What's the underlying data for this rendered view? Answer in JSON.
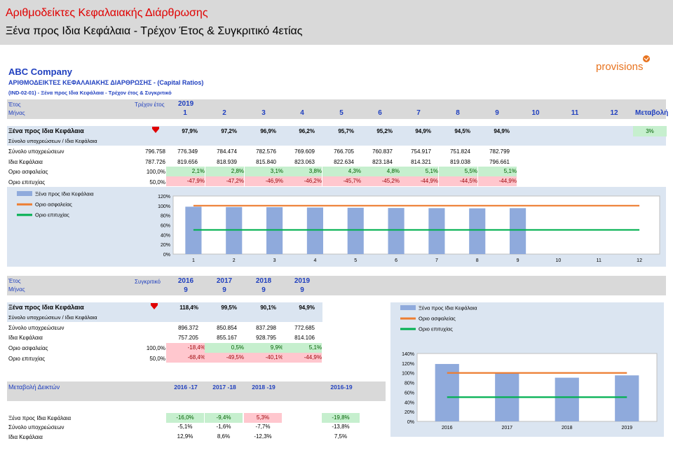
{
  "header": {
    "title": "Αριθμοδείκτες Κεφαλαιακής Διάρθρωσης",
    "subtitle": "Ξένα προς Ιδια Κεφάλαια - Τρέχον Έτος & Συγκριτικό 4ετίας"
  },
  "report": {
    "company": "ABC Company",
    "heading": "ΑΡΙΘΜΟΔΕΙΚΤΕΣ ΚΕΦΑΛΑΙΑΚΗΣ ΔΙΑΡΘΡΩΣΗΣ - (Capital Ratios)",
    "code": "(IND-02-01) - Ξένα προς Ιδια Κεφάλαια - Τρέχον έτος & Συγκριτικό",
    "logo_text": "provisions"
  },
  "colors": {
    "bar": "#8faadc",
    "insurance": "#ed7d31",
    "success": "#00b050",
    "blue_text": "#1f3fbf"
  },
  "current": {
    "year_label": "Έτος",
    "month_label": "Μήνας",
    "current_label": "Τρέχον έτος",
    "year": "2019",
    "months": [
      "1",
      "2",
      "3",
      "4",
      "5",
      "6",
      "7",
      "8",
      "9",
      "10",
      "11",
      "12"
    ],
    "change_label": "Μεταβολή",
    "ratio_label": "Ξένα προς Ιδια Κεφάλαια",
    "ratio": [
      "97,9%",
      "96,9%"
    ],
    "ratio_values": [
      "97,9%",
      "97,2%",
      "96,9%",
      "96,2%",
      "95,7%",
      "95,2%",
      "94,9%",
      "94,5%",
      "94,9%"
    ],
    "change_value": "3%",
    "ratio_sub_label": "Σύνολο υποχρεώσεων / Ιδια Κεφάλαια",
    "liabilities_label": "Σύνολο υποχρεώσεων",
    "liabilities_base": "796.758",
    "liabilities": [
      "776.349",
      "784.474",
      "782.576",
      "769.609",
      "766.705",
      "760.837",
      "754.917",
      "751.824",
      "782.799"
    ],
    "equity_label": "Ιδια Κεφάλαια",
    "equity_base": "787.726",
    "equity": [
      "819.656",
      "818.939",
      "815.840",
      "823.063",
      "822.634",
      "823.184",
      "814.321",
      "819.038",
      "796.661"
    ],
    "insurance_label": "Οριο ασφαλείας",
    "insurance_base": "100,0%",
    "insurance": [
      "2,1%",
      "2,8%",
      "3,1%",
      "3,8%",
      "4,3%",
      "4,8%",
      "5,1%",
      "5,5%",
      "5,1%"
    ],
    "success_label": "Οριο επιτυχίας",
    "success_base": "50,0%",
    "success": [
      "-47,9%",
      "-47,2%",
      "-46,9%",
      "-46,2%",
      "-45,7%",
      "-45,2%",
      "-44,9%",
      "-44,5%",
      "-44,9%"
    ]
  },
  "comparative": {
    "year_label": "Έτος",
    "month_label": "Μήνας",
    "comp_label": "Συγκριτικό",
    "years": [
      "2016",
      "2017",
      "2018",
      "2019"
    ],
    "months": [
      "9",
      "9",
      "9",
      "9"
    ],
    "ratio_label": "Ξένα προς Ιδια Κεφάλαια",
    "ratio_values": [
      "118,4%",
      "99,5%",
      "90,1%",
      "94,9%"
    ],
    "ratio_sub_label": "Σύνολο υποχρεώσεων / Ιδια Κεφάλαια",
    "liabilities_label": "Σύνολο υποχρεώσεων",
    "liabilities": [
      "896.372",
      "850.854",
      "837.298",
      "772.685"
    ],
    "equity_label": "Ιδια Κεφάλαια",
    "equity": [
      "757.205",
      "855.167",
      "928.795",
      "814.106"
    ],
    "insurance_label": "Οριο ασφαλείας",
    "insurance_base": "100,0%",
    "insurance": [
      "-18,4%",
      "0,5%",
      "9,9%",
      "5,1%"
    ],
    "success_label": "Οριο επιτυχίας",
    "success_base": "50,0%",
    "success": [
      "-68,4%",
      "-49,5%",
      "-40,1%",
      "-44,9%"
    ]
  },
  "changes": {
    "title": "Μεταβολή Δεικτών",
    "periods": [
      "2016 -17",
      "2017 -18",
      "2018 -19",
      "2016-19"
    ],
    "rows": [
      {
        "label": "Ξένα προς Ιδια Κεφάλαια",
        "values": [
          "-16,0%",
          "-9,4%",
          "5,3%",
          "-19,8%"
        ]
      },
      {
        "label": "Σύνολο υποχρεώσεων",
        "values": [
          "-5,1%",
          "-1,6%",
          "-7,7%",
          "-13,8%"
        ]
      },
      {
        "label": "Ιδια Κεφάλαια",
        "values": [
          "12,9%",
          "8,6%",
          "-12,3%",
          "7,5%"
        ]
      }
    ]
  },
  "chart_data": [
    {
      "type": "bar",
      "categories": [
        "1",
        "2",
        "3",
        "4",
        "5",
        "6",
        "7",
        "8",
        "9",
        "10",
        "11",
        "12"
      ],
      "series": [
        {
          "name": "Ξένα προς Ιδια Κεφάλαια",
          "values": [
            97.9,
            97.2,
            96.9,
            96.2,
            95.7,
            95.2,
            94.9,
            94.5,
            94.9,
            null,
            null,
            null
          ]
        },
        {
          "name": "Οριο ασφαλείας",
          "values": [
            100,
            100,
            100,
            100,
            100,
            100,
            100,
            100,
            100,
            100,
            100,
            100
          ]
        },
        {
          "name": "Οριο επιτυχίας",
          "values": [
            50,
            50,
            50,
            50,
            50,
            50,
            50,
            50,
            50,
            50,
            50,
            50
          ]
        }
      ],
      "yticks": [
        "0%",
        "20%",
        "40%",
        "60%",
        "80%",
        "100%",
        "120%"
      ],
      "ylim": [
        0,
        120
      ],
      "legend": "left"
    },
    {
      "type": "bar",
      "categories": [
        "2016",
        "2017",
        "2018",
        "2019"
      ],
      "series": [
        {
          "name": "Ξένα προς Ιδια Κεφάλαια",
          "values": [
            118.4,
            99.5,
            90.1,
            94.9
          ]
        },
        {
          "name": "Οριο ασφαλείας",
          "values": [
            100,
            100,
            100,
            100
          ]
        },
        {
          "name": "Οριο επιτυχίας",
          "values": [
            50,
            50,
            50,
            50
          ]
        }
      ],
      "yticks": [
        "0%",
        "20%",
        "40%",
        "60%",
        "80%",
        "100%",
        "120%",
        "140%"
      ],
      "ylim": [
        0,
        140
      ],
      "legend": "top-left"
    }
  ]
}
